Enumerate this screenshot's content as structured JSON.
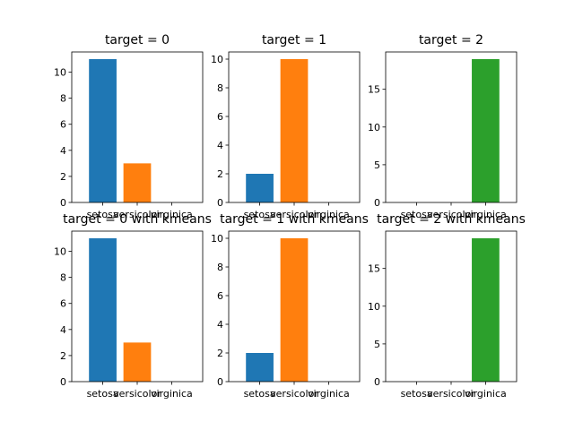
{
  "chart_data": [
    {
      "type": "bar",
      "title": "target = 0",
      "categories": [
        "setosa",
        "versicolor",
        "virginica"
      ],
      "values": [
        11,
        3,
        0
      ],
      "colors": [
        "#1f77b4",
        "#ff7f0e",
        "#2ca02c"
      ],
      "ylim": [
        0,
        11.55
      ],
      "yticks": [
        0,
        2,
        4,
        6,
        8,
        10
      ]
    },
    {
      "type": "bar",
      "title": "target = 1",
      "categories": [
        "setosa",
        "versicolor",
        "virginica"
      ],
      "values": [
        2,
        10,
        0
      ],
      "colors": [
        "#1f77b4",
        "#ff7f0e",
        "#2ca02c"
      ],
      "ylim": [
        0,
        10.5
      ],
      "yticks": [
        0,
        2,
        4,
        6,
        8,
        10
      ]
    },
    {
      "type": "bar",
      "title": "target = 2",
      "categories": [
        "setosa",
        "versicolor",
        "virginica"
      ],
      "values": [
        0,
        0,
        19
      ],
      "colors": [
        "#1f77b4",
        "#ff7f0e",
        "#2ca02c"
      ],
      "ylim": [
        0,
        19.95
      ],
      "yticks": [
        0,
        5,
        10,
        15
      ]
    },
    {
      "type": "bar",
      "title": "target = 0 with kmeans",
      "categories": [
        "setosa",
        "versicolor",
        "virginica"
      ],
      "values": [
        11,
        3,
        0
      ],
      "colors": [
        "#1f77b4",
        "#ff7f0e",
        "#2ca02c"
      ],
      "ylim": [
        0,
        11.55
      ],
      "yticks": [
        0,
        2,
        4,
        6,
        8,
        10
      ]
    },
    {
      "type": "bar",
      "title": "target = 1 with kmeans",
      "categories": [
        "setosa",
        "versicolor",
        "virginica"
      ],
      "values": [
        2,
        10,
        0
      ],
      "colors": [
        "#1f77b4",
        "#ff7f0e",
        "#2ca02c"
      ],
      "ylim": [
        0,
        10.5
      ],
      "yticks": [
        0,
        2,
        4,
        6,
        8,
        10
      ]
    },
    {
      "type": "bar",
      "title": "target = 2 with kmeans",
      "categories": [
        "setosa",
        "versicolor",
        "virginica"
      ],
      "values": [
        0,
        0,
        19
      ],
      "colors": [
        "#1f77b4",
        "#ff7f0e",
        "#2ca02c"
      ],
      "ylim": [
        0,
        19.95
      ],
      "yticks": [
        0,
        5,
        10,
        15
      ]
    }
  ]
}
